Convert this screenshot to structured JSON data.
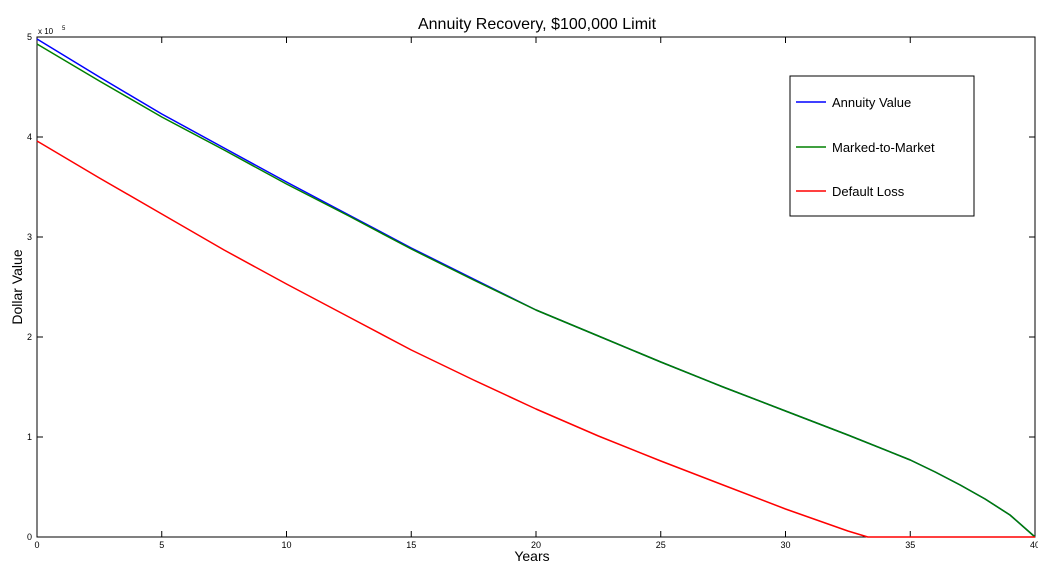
{
  "chart_data": {
    "type": "line",
    "title": "Annuity Recovery, $100,000 Limit",
    "xlabel": "Years",
    "ylabel": "Dollar Value",
    "y_exponent_prefix": "x 10",
    "y_exponent_power": "5",
    "xlim": [
      0,
      40
    ],
    "ylim": [
      0,
      5
    ],
    "x_ticks": [
      0,
      5,
      10,
      15,
      20,
      25,
      30,
      35,
      40
    ],
    "y_ticks": [
      0,
      1,
      2,
      3,
      4,
      5
    ],
    "grid": false,
    "legend_position": "top-right",
    "series": [
      {
        "name": "Annuity Value",
        "color": "#0000ff",
        "x": [
          0,
          2.5,
          5,
          7.5,
          10,
          12.5,
          15,
          17.5,
          20,
          22.5,
          25,
          27.5,
          30,
          32.5,
          35,
          36,
          37,
          38,
          39,
          40
        ],
        "y": [
          4.98,
          4.6,
          4.23,
          3.89,
          3.55,
          3.22,
          2.89,
          2.58,
          2.27,
          2.01,
          1.75,
          1.5,
          1.26,
          1.02,
          0.77,
          0.65,
          0.52,
          0.38,
          0.22,
          0.0
        ]
      },
      {
        "name": "Marked-to-Market",
        "color": "#008000",
        "x": [
          0,
          2.5,
          5,
          7.5,
          10,
          12.5,
          15,
          17.5,
          20,
          22.5,
          25,
          27.5,
          30,
          32.5,
          35,
          36,
          37,
          38,
          39,
          40
        ],
        "y": [
          4.93,
          4.56,
          4.2,
          3.87,
          3.53,
          3.21,
          2.88,
          2.57,
          2.27,
          2.01,
          1.75,
          1.5,
          1.26,
          1.02,
          0.77,
          0.65,
          0.52,
          0.38,
          0.22,
          0.0
        ]
      },
      {
        "name": "Default Loss",
        "color": "#ff0000",
        "x": [
          0,
          2.5,
          5,
          7.5,
          10,
          12.5,
          15,
          17.5,
          20,
          22.5,
          25,
          27.5,
          30,
          32.5,
          33.3,
          35,
          37.5,
          40
        ],
        "y": [
          3.96,
          3.59,
          3.23,
          2.87,
          2.53,
          2.2,
          1.87,
          1.57,
          1.28,
          1.01,
          0.76,
          0.52,
          0.28,
          0.06,
          0.0,
          0.0,
          0.0,
          0.0
        ]
      }
    ]
  }
}
